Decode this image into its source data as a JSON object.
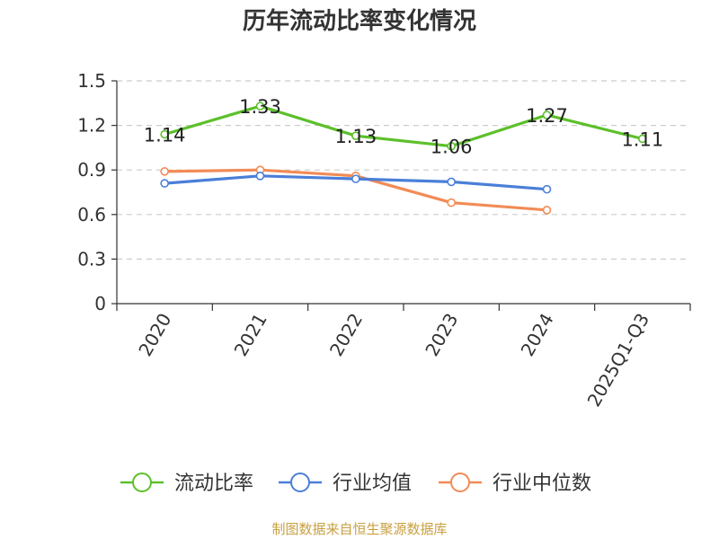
{
  "chart_data": {
    "type": "line",
    "title": "历年流动比率变化情况",
    "categories": [
      "2020",
      "2021",
      "2022",
      "2023",
      "2024",
      "2025Q1-Q3"
    ],
    "ylim": [
      0,
      1.5
    ],
    "yticks": [
      "0",
      "0.3",
      "0.6",
      "0.9",
      "1.2",
      "1.5"
    ],
    "grid": true,
    "legend_position": "bottom",
    "series": [
      {
        "name": "流动比率",
        "color": "#5cc02a",
        "values": [
          1.14,
          1.33,
          1.13,
          1.06,
          1.27,
          1.11
        ],
        "labels": [
          "1.14",
          "1.33",
          "1.13",
          "1.06",
          "1.27",
          "1.11"
        ]
      },
      {
        "name": "行业均值",
        "color": "#4a7fd8",
        "values": [
          0.81,
          0.86,
          0.84,
          0.82,
          0.77,
          null
        ]
      },
      {
        "name": "行业中位数",
        "color": "#f28b56",
        "values": [
          0.89,
          0.9,
          0.86,
          0.68,
          0.63,
          null
        ]
      }
    ]
  },
  "footer": {
    "source": "制图数据来自恒生聚源数据库"
  }
}
